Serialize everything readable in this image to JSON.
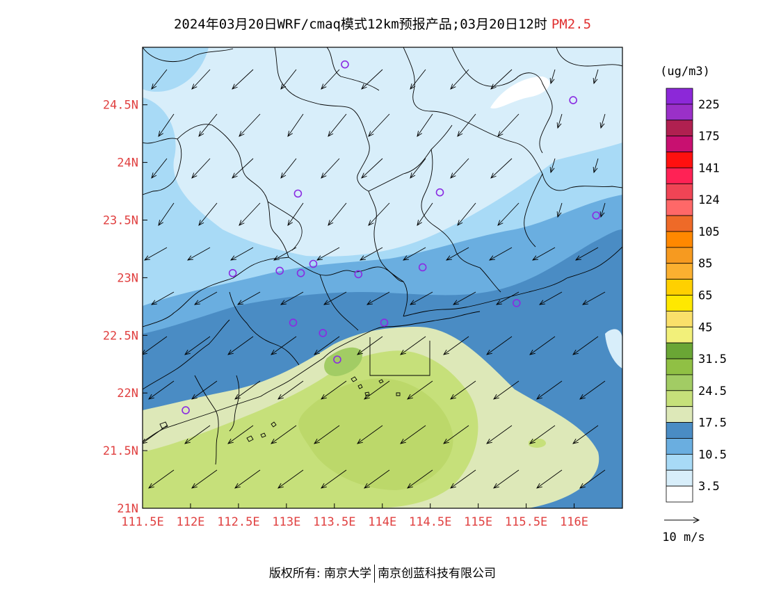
{
  "title": {
    "main": "2024年03月20日WRF/cmaq模式12km预报产品;03月20日12时",
    "variable": "PM2.5"
  },
  "axes": {
    "x_ticks": [
      "111.5E",
      "112E",
      "112.5E",
      "113E",
      "113.5E",
      "114E",
      "114.5E",
      "115E",
      "115.5E",
      "116E"
    ],
    "y_ticks": [
      "21N",
      "21.5N",
      "22N",
      "22.5N",
      "23N",
      "23.5N",
      "24N",
      "24.5N"
    ],
    "lon_range": [
      111.5,
      116.5
    ],
    "lat_range": [
      21.0,
      25.0
    ]
  },
  "legend": {
    "unit": "(ug/m3)",
    "labels": [
      "3.5",
      "10.5",
      "17.5",
      "24.5",
      "31.5",
      "45",
      "65",
      "85",
      "105",
      "124",
      "141",
      "175",
      "225"
    ],
    "colors": [
      "#ffffff",
      "#d8eefa",
      "#a8daf6",
      "#6aaee0",
      "#4a8cc4",
      "#dde8b8",
      "#c6e07a",
      "#a2cc64",
      "#90c044",
      "#6aa635",
      "#f2f07a",
      "#fae06a",
      "#ffe800",
      "#ffd000",
      "#fbb030",
      "#f69a20",
      "#ff8800",
      "#ee6a28",
      "#ff6868",
      "#f04455",
      "#ff2255",
      "#ff1010",
      "#c81070",
      "#b02050",
      "#9a30c8",
      "#8c28d8"
    ]
  },
  "wind_reference": {
    "label": "10 m/s"
  },
  "footer": {
    "copyright": "版权所有: 南京大学",
    "company": "南京创蓝科技有限公司"
  },
  "stations": [
    [
      113.61,
      24.85
    ],
    [
      115.99,
      24.54
    ],
    [
      113.12,
      23.73
    ],
    [
      114.6,
      23.74
    ],
    [
      116.23,
      23.54
    ],
    [
      112.93,
      23.06
    ],
    [
      112.44,
      23.04
    ],
    [
      113.15,
      23.04
    ],
    [
      113.28,
      23.12
    ],
    [
      113.75,
      23.03
    ],
    [
      114.42,
      23.09
    ],
    [
      115.4,
      22.78
    ],
    [
      113.07,
      22.61
    ],
    [
      113.38,
      22.52
    ],
    [
      114.02,
      22.61
    ],
    [
      113.53,
      22.29
    ],
    [
      111.95,
      21.85
    ]
  ]
}
